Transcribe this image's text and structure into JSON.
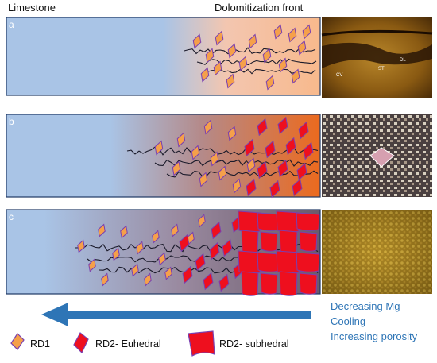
{
  "header": {
    "left_label": "Limestone",
    "right_label": "Dolomitization front"
  },
  "panels": [
    {
      "letter": "a",
      "photo_labels": [
        "CV",
        "ST",
        "DL"
      ]
    },
    {
      "letter": "b"
    },
    {
      "letter": "c"
    }
  ],
  "arrow_text": [
    "Decreasing Mg",
    "Cooling",
    "Increasing porosity"
  ],
  "legend": [
    {
      "label": "RD1"
    },
    {
      "label": "RD2- Euhedral"
    },
    {
      "label": "RD2- subhedral"
    }
  ],
  "colors": {
    "limestone_blue": "#a9c4e6",
    "rd1_fill": "#f5a04a",
    "rd2_fill": "#ee0f1e",
    "crystal_edge": "#7a3fb0",
    "arrow_blue": "#2e75b6",
    "panel_border": "#1f3864"
  }
}
